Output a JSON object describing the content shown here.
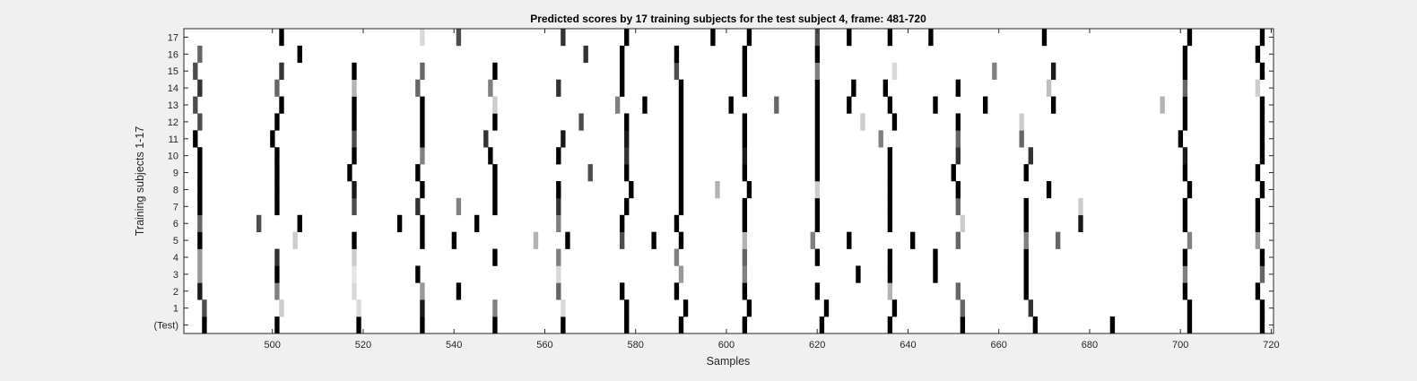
{
  "chart_data": {
    "type": "heatmap",
    "title": "Predicted scores by 17 training subjects for the test subject 4, frame: 481-720",
    "xlabel": "Samples",
    "ylabel": "Training subjects 1-17",
    "xlim": [
      481,
      720
    ],
    "xticks": [
      500,
      520,
      540,
      560,
      580,
      600,
      620,
      640,
      660,
      680,
      700,
      720
    ],
    "y_categories": [
      "(Test)",
      "1",
      "2",
      "3",
      "4",
      "5",
      "6",
      "7",
      "8",
      "9",
      "10",
      "11",
      "12",
      "13",
      "14",
      "15",
      "16",
      "17"
    ],
    "colormap": "gray (white background = 0, black = 1)",
    "background_color": "#ffffff",
    "figure_background": "#f0f0f0",
    "rows": [
      {
        "label": "(Test)",
        "marks": [
          [
            485,
            1
          ],
          [
            501,
            1
          ],
          [
            519,
            1
          ],
          [
            533,
            1
          ],
          [
            549,
            1
          ],
          [
            564,
            1
          ],
          [
            578,
            1
          ],
          [
            590,
            1
          ],
          [
            604,
            1
          ],
          [
            621,
            1
          ],
          [
            636,
            1
          ],
          [
            652,
            1
          ],
          [
            668,
            1
          ],
          [
            685,
            1
          ],
          [
            702,
            1
          ],
          [
            718,
            1
          ]
        ]
      },
      {
        "label": "1",
        "marks": [
          [
            485,
            0.7
          ],
          [
            502,
            0.2
          ],
          [
            519,
            0.15
          ],
          [
            533,
            0.9
          ],
          [
            549,
            0.5
          ],
          [
            564,
            0.15
          ],
          [
            578,
            1
          ],
          [
            591,
            1
          ],
          [
            605,
            1
          ],
          [
            622,
            1
          ],
          [
            637,
            1
          ],
          [
            652,
            0.6
          ],
          [
            667,
            0.8
          ],
          [
            702,
            1
          ],
          [
            718,
            1
          ]
        ]
      },
      {
        "label": "2",
        "marks": [
          [
            484,
            0.9
          ],
          [
            501,
            0.5
          ],
          [
            518,
            0.15
          ],
          [
            533,
            0.4
          ],
          [
            541,
            1
          ],
          [
            563,
            0.6
          ],
          [
            577,
            1
          ],
          [
            589,
            1
          ],
          [
            604,
            1
          ],
          [
            620,
            1
          ],
          [
            636,
            0.3
          ],
          [
            651,
            0.6
          ],
          [
            666,
            1
          ],
          [
            701,
            1
          ],
          [
            717,
            1
          ]
        ]
      },
      {
        "label": "3",
        "marks": [
          [
            484,
            0.4
          ],
          [
            501,
            1
          ],
          [
            518,
            0.1
          ],
          [
            532,
            1
          ],
          [
            563,
            0.15
          ],
          [
            590,
            0.4
          ],
          [
            604,
            0.5
          ],
          [
            629,
            1
          ],
          [
            636,
            1
          ],
          [
            646,
            1
          ],
          [
            666,
            1
          ],
          [
            701,
            0.5
          ],
          [
            718,
            0.6
          ]
        ]
      },
      {
        "label": "4",
        "marks": [
          [
            484,
            0.4
          ],
          [
            501,
            0.8
          ],
          [
            518,
            0.2
          ],
          [
            549,
            1
          ],
          [
            563,
            0.5
          ],
          [
            589,
            0.5
          ],
          [
            604,
            0.6
          ],
          [
            620,
            1
          ],
          [
            636,
            1
          ],
          [
            646,
            1
          ],
          [
            666,
            1
          ],
          [
            701,
            1
          ],
          [
            718,
            1
          ]
        ]
      },
      {
        "label": "5",
        "marks": [
          [
            484,
            1
          ],
          [
            505,
            0.2
          ],
          [
            518,
            1
          ],
          [
            533,
            1
          ],
          [
            540,
            1
          ],
          [
            558,
            0.3
          ],
          [
            565,
            1
          ],
          [
            577,
            0.7
          ],
          [
            584,
            1
          ],
          [
            590,
            1
          ],
          [
            604,
            0.3
          ],
          [
            619,
            0.5
          ],
          [
            627,
            1
          ],
          [
            641,
            1
          ],
          [
            651,
            0.6
          ],
          [
            666,
            0.5
          ],
          [
            673,
            0.6
          ],
          [
            702,
            0.5
          ],
          [
            717,
            0.4
          ]
        ]
      },
      {
        "label": "6",
        "marks": [
          [
            484,
            0.6
          ],
          [
            497,
            0.7
          ],
          [
            506,
            1
          ],
          [
            528,
            1
          ],
          [
            533,
            1
          ],
          [
            545,
            1
          ],
          [
            563,
            0.5
          ],
          [
            577,
            1
          ],
          [
            589,
            1
          ],
          [
            604,
            1
          ],
          [
            620,
            1
          ],
          [
            636,
            1
          ],
          [
            652,
            0.2
          ],
          [
            666,
            1
          ],
          [
            678,
            0.9
          ],
          [
            701,
            1
          ],
          [
            717,
            1
          ]
        ]
      },
      {
        "label": "7",
        "marks": [
          [
            484,
            1
          ],
          [
            501,
            1
          ],
          [
            518,
            0.7
          ],
          [
            532,
            0.8
          ],
          [
            541,
            0.5
          ],
          [
            549,
            1
          ],
          [
            563,
            0.8
          ],
          [
            578,
            1
          ],
          [
            590,
            1
          ],
          [
            604,
            1
          ],
          [
            620,
            1
          ],
          [
            636,
            1
          ],
          [
            651,
            0.6
          ],
          [
            666,
            1
          ],
          [
            678,
            0.2
          ],
          [
            701,
            1
          ],
          [
            717,
            1
          ]
        ]
      },
      {
        "label": "8",
        "marks": [
          [
            484,
            1
          ],
          [
            501,
            1
          ],
          [
            518,
            0.9
          ],
          [
            533,
            1
          ],
          [
            549,
            1
          ],
          [
            563,
            1
          ],
          [
            579,
            1
          ],
          [
            590,
            1
          ],
          [
            598,
            0.3
          ],
          [
            605,
            1
          ],
          [
            620,
            0.2
          ],
          [
            636,
            1
          ],
          [
            651,
            1
          ],
          [
            671,
            1
          ],
          [
            702,
            1
          ],
          [
            718,
            1
          ]
        ]
      },
      {
        "label": "9",
        "marks": [
          [
            484,
            1
          ],
          [
            501,
            1
          ],
          [
            517,
            1
          ],
          [
            532,
            1
          ],
          [
            549,
            1
          ],
          [
            570,
            0.7
          ],
          [
            578,
            1
          ],
          [
            590,
            1
          ],
          [
            604,
            1
          ],
          [
            620,
            1
          ],
          [
            636,
            1
          ],
          [
            650,
            1
          ],
          [
            666,
            1
          ],
          [
            701,
            1
          ],
          [
            717,
            1
          ]
        ]
      },
      {
        "label": "10",
        "marks": [
          [
            484,
            1
          ],
          [
            501,
            1
          ],
          [
            518,
            1
          ],
          [
            533,
            0.5
          ],
          [
            548,
            1
          ],
          [
            563,
            1
          ],
          [
            578,
            0.8
          ],
          [
            590,
            1
          ],
          [
            604,
            0.9
          ],
          [
            620,
            1
          ],
          [
            636,
            1
          ],
          [
            651,
            0.8
          ],
          [
            667,
            0.8
          ],
          [
            701,
            0.9
          ],
          [
            718,
            1
          ]
        ]
      },
      {
        "label": "11",
        "marks": [
          [
            483,
            1
          ],
          [
            500,
            1
          ],
          [
            518,
            0.7
          ],
          [
            533,
            1
          ],
          [
            547,
            0.8
          ],
          [
            564,
            0.9
          ],
          [
            578,
            0.9
          ],
          [
            590,
            1
          ],
          [
            604,
            1
          ],
          [
            620,
            1
          ],
          [
            634,
            0.5
          ],
          [
            651,
            0.6
          ],
          [
            665,
            0.6
          ],
          [
            700,
            1
          ],
          [
            718,
            1
          ]
        ]
      },
      {
        "label": "12",
        "marks": [
          [
            484,
            0.7
          ],
          [
            501,
            1
          ],
          [
            518,
            1
          ],
          [
            533,
            1
          ],
          [
            549,
            1
          ],
          [
            568,
            0.7
          ],
          [
            578,
            1
          ],
          [
            590,
            1
          ],
          [
            604,
            1
          ],
          [
            620,
            1
          ],
          [
            630,
            0.2
          ],
          [
            637,
            1
          ],
          [
            651,
            1
          ],
          [
            665,
            0.2
          ],
          [
            701,
            1
          ],
          [
            718,
            1
          ]
        ]
      },
      {
        "label": "13",
        "marks": [
          [
            483,
            0.7
          ],
          [
            502,
            1
          ],
          [
            518,
            1
          ],
          [
            533,
            1
          ],
          [
            549,
            0.2
          ],
          [
            576,
            0.5
          ],
          [
            582,
            1
          ],
          [
            590,
            1
          ],
          [
            601,
            1
          ],
          [
            611,
            0.6
          ],
          [
            620,
            1
          ],
          [
            627,
            1
          ],
          [
            636,
            1
          ],
          [
            646,
            1
          ],
          [
            657,
            1
          ],
          [
            672,
            1
          ],
          [
            696,
            0.3
          ],
          [
            701,
            1
          ],
          [
            718,
            1
          ]
        ]
      },
      {
        "label": "14",
        "marks": [
          [
            484,
            0.8
          ],
          [
            501,
            0.6
          ],
          [
            518,
            0.3
          ],
          [
            532,
            0.6
          ],
          [
            548,
            0.5
          ],
          [
            563,
            0.8
          ],
          [
            577,
            1
          ],
          [
            590,
            1
          ],
          [
            604,
            1
          ],
          [
            620,
            1
          ],
          [
            628,
            1
          ],
          [
            635,
            1
          ],
          [
            651,
            1
          ],
          [
            671,
            0.25
          ],
          [
            701,
            0.6
          ],
          [
            717,
            0.2
          ]
        ]
      },
      {
        "label": "15",
        "marks": [
          [
            483,
            0.7
          ],
          [
            502,
            0.8
          ],
          [
            518,
            1
          ],
          [
            533,
            0.6
          ],
          [
            549,
            1
          ],
          [
            577,
            1
          ],
          [
            589,
            0.7
          ],
          [
            604,
            1
          ],
          [
            620,
            0.5
          ],
          [
            637,
            0.15
          ],
          [
            659,
            0.5
          ],
          [
            672,
            0.9
          ],
          [
            701,
            1
          ],
          [
            718,
            1
          ]
        ]
      },
      {
        "label": "16",
        "marks": [
          [
            484,
            0.6
          ],
          [
            506,
            1
          ],
          [
            569,
            0.8
          ],
          [
            577,
            1
          ],
          [
            589,
            1
          ],
          [
            604,
            1
          ],
          [
            620,
            1
          ],
          [
            701,
            1
          ],
          [
            717,
            1
          ]
        ]
      },
      {
        "label": "17",
        "marks": [
          [
            502,
            1
          ],
          [
            533,
            0.15
          ],
          [
            541,
            0.7
          ],
          [
            564,
            0.8
          ],
          [
            578,
            1
          ],
          [
            597,
            1
          ],
          [
            605,
            1
          ],
          [
            620,
            0.7
          ],
          [
            627,
            1
          ],
          [
            636,
            1
          ],
          [
            645,
            1
          ],
          [
            670,
            1
          ],
          [
            702,
            1
          ],
          [
            718,
            1
          ]
        ]
      }
    ]
  }
}
